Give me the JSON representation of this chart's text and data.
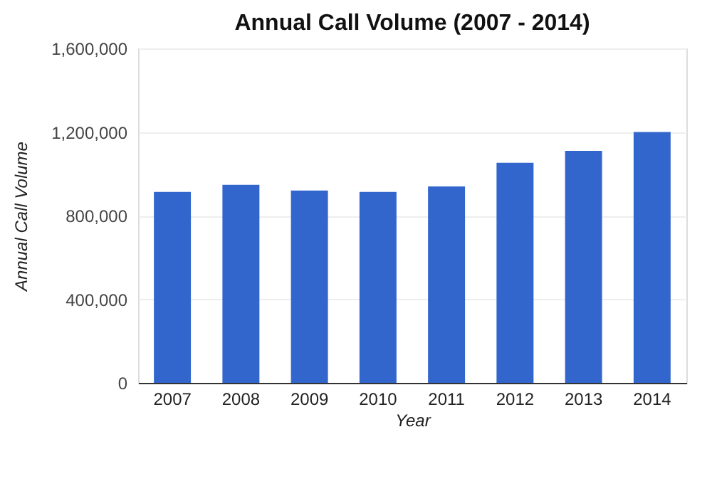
{
  "chart_data": {
    "type": "bar",
    "title": "Annual Call Volume (2007 - 2014)",
    "xlabel": "Year",
    "ylabel": "Annual Call Volume",
    "categories": [
      "2007",
      "2008",
      "2009",
      "2010",
      "2011",
      "2012",
      "2013",
      "2014"
    ],
    "values": [
      913000,
      947000,
      920000,
      913000,
      940000,
      1053000,
      1110000,
      1200000
    ],
    "color": "#3366cc",
    "ylim": [
      0,
      1600000
    ],
    "yticks": [
      0,
      {
        "value": 400000,
        "label": "400,000"
      },
      {
        "value": 800000,
        "label": "800,000"
      },
      {
        "value": 1200000,
        "label": "1,200,000"
      },
      {
        "value": 1600000,
        "label": "1,600,000"
      }
    ],
    "grid": "y"
  }
}
